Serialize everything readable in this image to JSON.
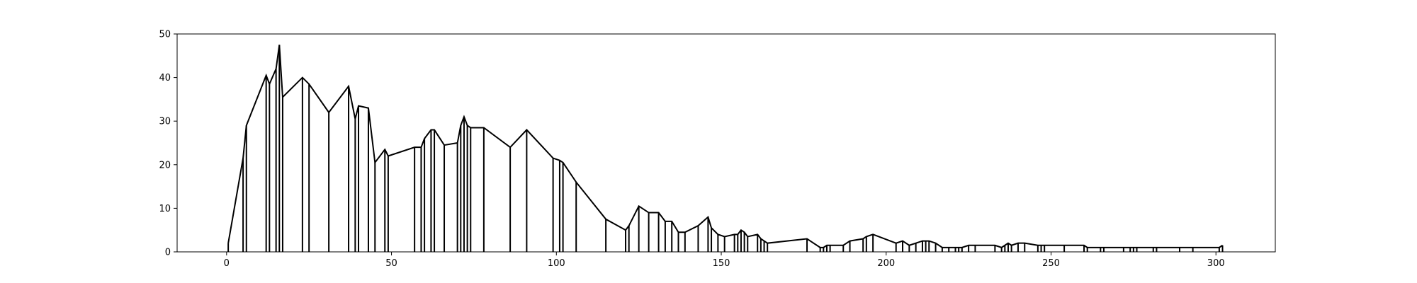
{
  "chart_data": {
    "type": "line",
    "title": "",
    "xlabel": "",
    "ylabel": "",
    "xlim": [
      -15,
      318
    ],
    "ylim": [
      0,
      50
    ],
    "grid": false,
    "x_ticks": [
      0,
      50,
      100,
      150,
      200,
      250,
      300
    ],
    "y_ticks": [
      0,
      10,
      20,
      30,
      40,
      50
    ],
    "colors": {
      "line": "#000000",
      "axes": "#000000",
      "background": "#ffffff"
    },
    "series": [
      {
        "drop_lines": true,
        "x": [
          0.5,
          5,
          6,
          12,
          13,
          15,
          16,
          17,
          23,
          25,
          31,
          37,
          39,
          40,
          43,
          45,
          48,
          49,
          57,
          59,
          60,
          62,
          63,
          66,
          70,
          71,
          72,
          73,
          74,
          78,
          86,
          91,
          99,
          101,
          102,
          106,
          115,
          121,
          122,
          125,
          128,
          131,
          133,
          135,
          137,
          139,
          143,
          146,
          147,
          149,
          151,
          154,
          155,
          156,
          157,
          158,
          161,
          162,
          163,
          164,
          176,
          180,
          181,
          182,
          183,
          187,
          189,
          193,
          194,
          196,
          203,
          205,
          207,
          209,
          211,
          212,
          213,
          215,
          217,
          219,
          221,
          222,
          223,
          225,
          227,
          233,
          235,
          236,
          237,
          238,
          240,
          242,
          246,
          247,
          248,
          254,
          260,
          261,
          265,
          266,
          272,
          274,
          275,
          276,
          281,
          282,
          289,
          293,
          301,
          302
        ],
        "y": [
          2,
          21.5,
          29,
          40.5,
          38.5,
          42,
          47.5,
          35.5,
          40,
          38.5,
          32,
          38,
          30.5,
          33.5,
          33,
          20.5,
          23.5,
          22,
          24,
          24,
          26,
          28,
          28,
          24.5,
          25,
          29,
          31,
          29,
          28.5,
          28.5,
          24,
          28,
          21.5,
          21,
          20.5,
          16,
          7.5,
          5,
          6,
          10.5,
          9,
          9,
          7,
          7,
          4.5,
          4.5,
          6,
          8,
          5.5,
          4,
          3.5,
          4,
          4,
          5,
          4.5,
          3.5,
          4,
          3,
          2.5,
          2,
          3,
          1,
          1,
          1.5,
          1.5,
          1.5,
          2.5,
          3,
          3.5,
          4,
          2,
          2.5,
          1.5,
          2,
          2.5,
          2.5,
          2.5,
          2,
          1,
          1,
          1,
          1,
          1,
          1.5,
          1.5,
          1.5,
          1,
          1.5,
          2,
          1.5,
          2,
          2,
          1.5,
          1.5,
          1.5,
          1.5,
          1.5,
          1,
          1,
          1,
          1,
          1,
          1,
          1,
          1,
          1,
          1,
          1,
          1,
          1.5
        ]
      }
    ]
  }
}
